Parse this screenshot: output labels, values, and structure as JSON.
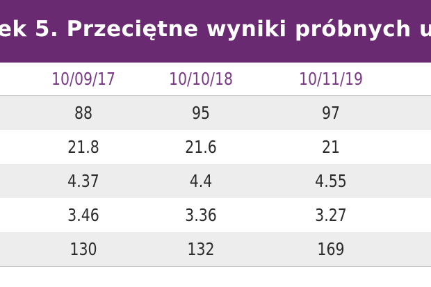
{
  "table": {
    "title": "ek 5. Przeciętne wyniki próbnych u",
    "columns": [
      "10/09/17",
      "10/10/18",
      "10/11/19"
    ],
    "rows": [
      [
        "88",
        "95",
        "97"
      ],
      [
        "21.8",
        "21.6",
        "21"
      ],
      [
        "4.37",
        "4.4",
        "4.55"
      ],
      [
        "3.46",
        "3.36",
        "3.27"
      ],
      [
        "130",
        "132",
        "169"
      ]
    ]
  }
}
